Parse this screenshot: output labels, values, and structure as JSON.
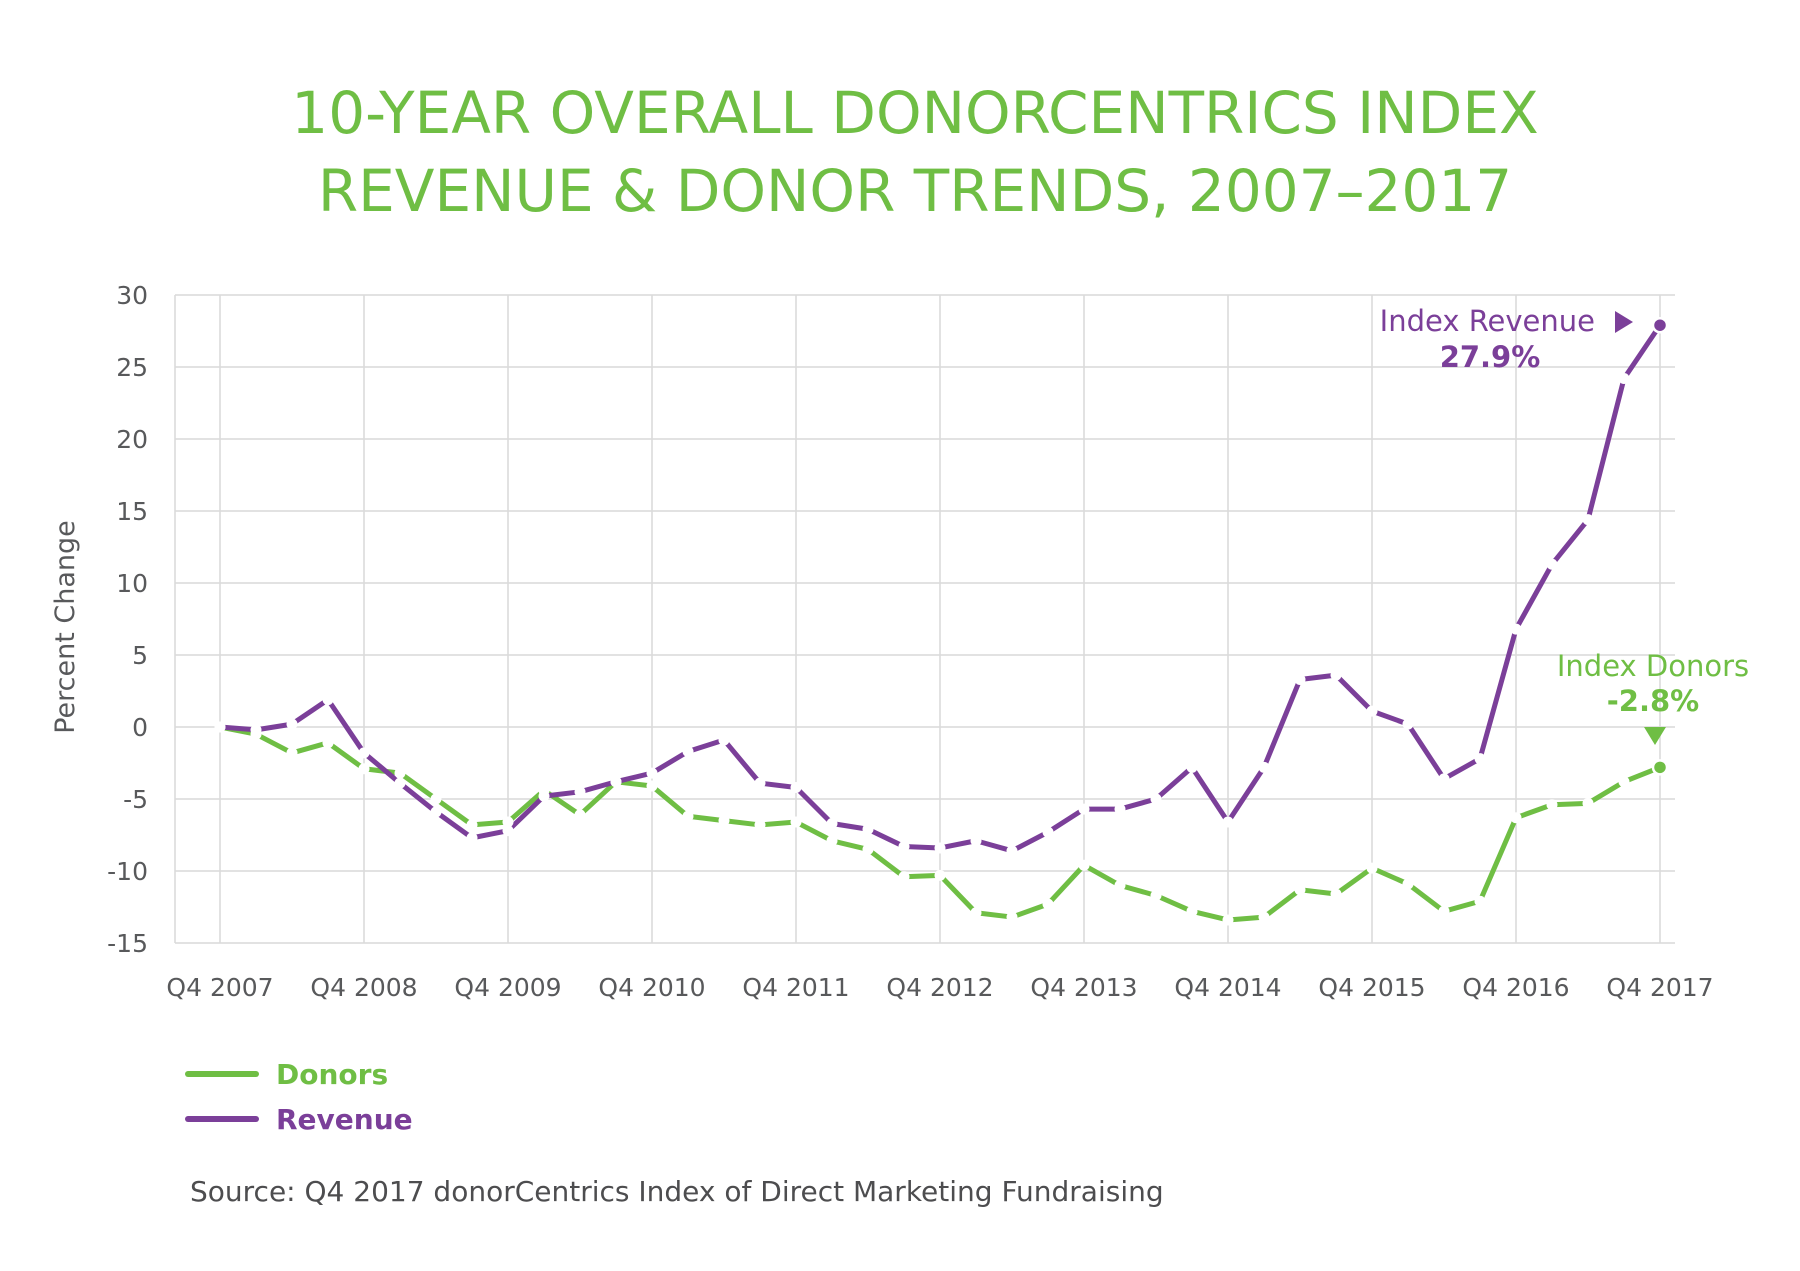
{
  "title_lines": [
    "10-YEAR OVERALL DONORCENTRICS INDEX",
    "REVENUE & DONOR TRENDS, 2007–2017"
  ],
  "colors": {
    "title": "#6fbe44",
    "donors": "#6fbe44",
    "revenue": "#7b3f99",
    "grid": "#d9d9d9",
    "text": "#58595b",
    "source": "#4d4d4f"
  },
  "chart_data": {
    "type": "line",
    "ylabel": "Percent Change",
    "xlabel": "",
    "ylim": [
      -15,
      30
    ],
    "yticks": [
      30,
      25,
      20,
      15,
      10,
      5,
      0,
      -5,
      -10,
      -15
    ],
    "ytick_labels": [
      "30",
      "25",
      "20",
      "15",
      "10",
      "5",
      "0",
      "-5",
      "-10",
      "-15"
    ],
    "x_tick_labels": [
      "Q4 2007",
      "Q4 2008",
      "Q4 2009",
      "Q4 2010",
      "Q4 2011",
      "Q4 2012",
      "Q4 2013",
      "Q4 2014",
      "Q4 2015",
      "Q4 2016",
      "Q4 2017"
    ],
    "x_count": 41,
    "grid": true,
    "series": [
      {
        "name": "Donors",
        "color": "#6fbe44",
        "values": [
          0,
          -0.5,
          -1.8,
          -1.1,
          -2.9,
          -3.2,
          -5.0,
          -6.8,
          -6.6,
          -4.4,
          -6.1,
          -3.8,
          -4.1,
          -6.2,
          -6.5,
          -6.8,
          -6.6,
          -7.9,
          -8.5,
          -10.4,
          -10.3,
          -12.9,
          -13.2,
          -12.3,
          -9.6,
          -11.0,
          -11.7,
          -12.8,
          -13.4,
          -13.2,
          -11.3,
          -11.6,
          -9.8,
          -10.9,
          -12.8,
          -12.1,
          -6.3,
          -5.4,
          -5.3,
          -3.8,
          -2.8
        ]
      },
      {
        "name": "Revenue",
        "color": "#7b3f99",
        "values": [
          0,
          -0.2,
          0.2,
          1.9,
          -1.8,
          -3.9,
          -5.9,
          -7.7,
          -7.2,
          -4.8,
          -4.5,
          -3.8,
          -3.2,
          -1.7,
          -0.9,
          -3.9,
          -4.2,
          -6.7,
          -7.1,
          -8.3,
          -8.4,
          -7.9,
          -8.6,
          -7.3,
          -5.7,
          -5.7,
          -5.0,
          -2.8,
          -6.6,
          -2.8,
          3.3,
          3.6,
          1.1,
          0.2,
          -3.6,
          -2.2,
          6.8,
          11.3,
          14.4,
          24.2,
          27.9
        ]
      }
    ],
    "legend": {
      "placement": "bottom-left",
      "entries": [
        "Donors",
        "Revenue"
      ]
    },
    "annotations": [
      {
        "series": "Revenue",
        "label": "Index Revenue",
        "value_label": "27.9%"
      },
      {
        "series": "Donors",
        "label": "Index Donors",
        "value_label": "-2.8%"
      }
    ]
  },
  "source": "Source: Q4 2017 donorCentrics Index of Direct Marketing Fundraising"
}
